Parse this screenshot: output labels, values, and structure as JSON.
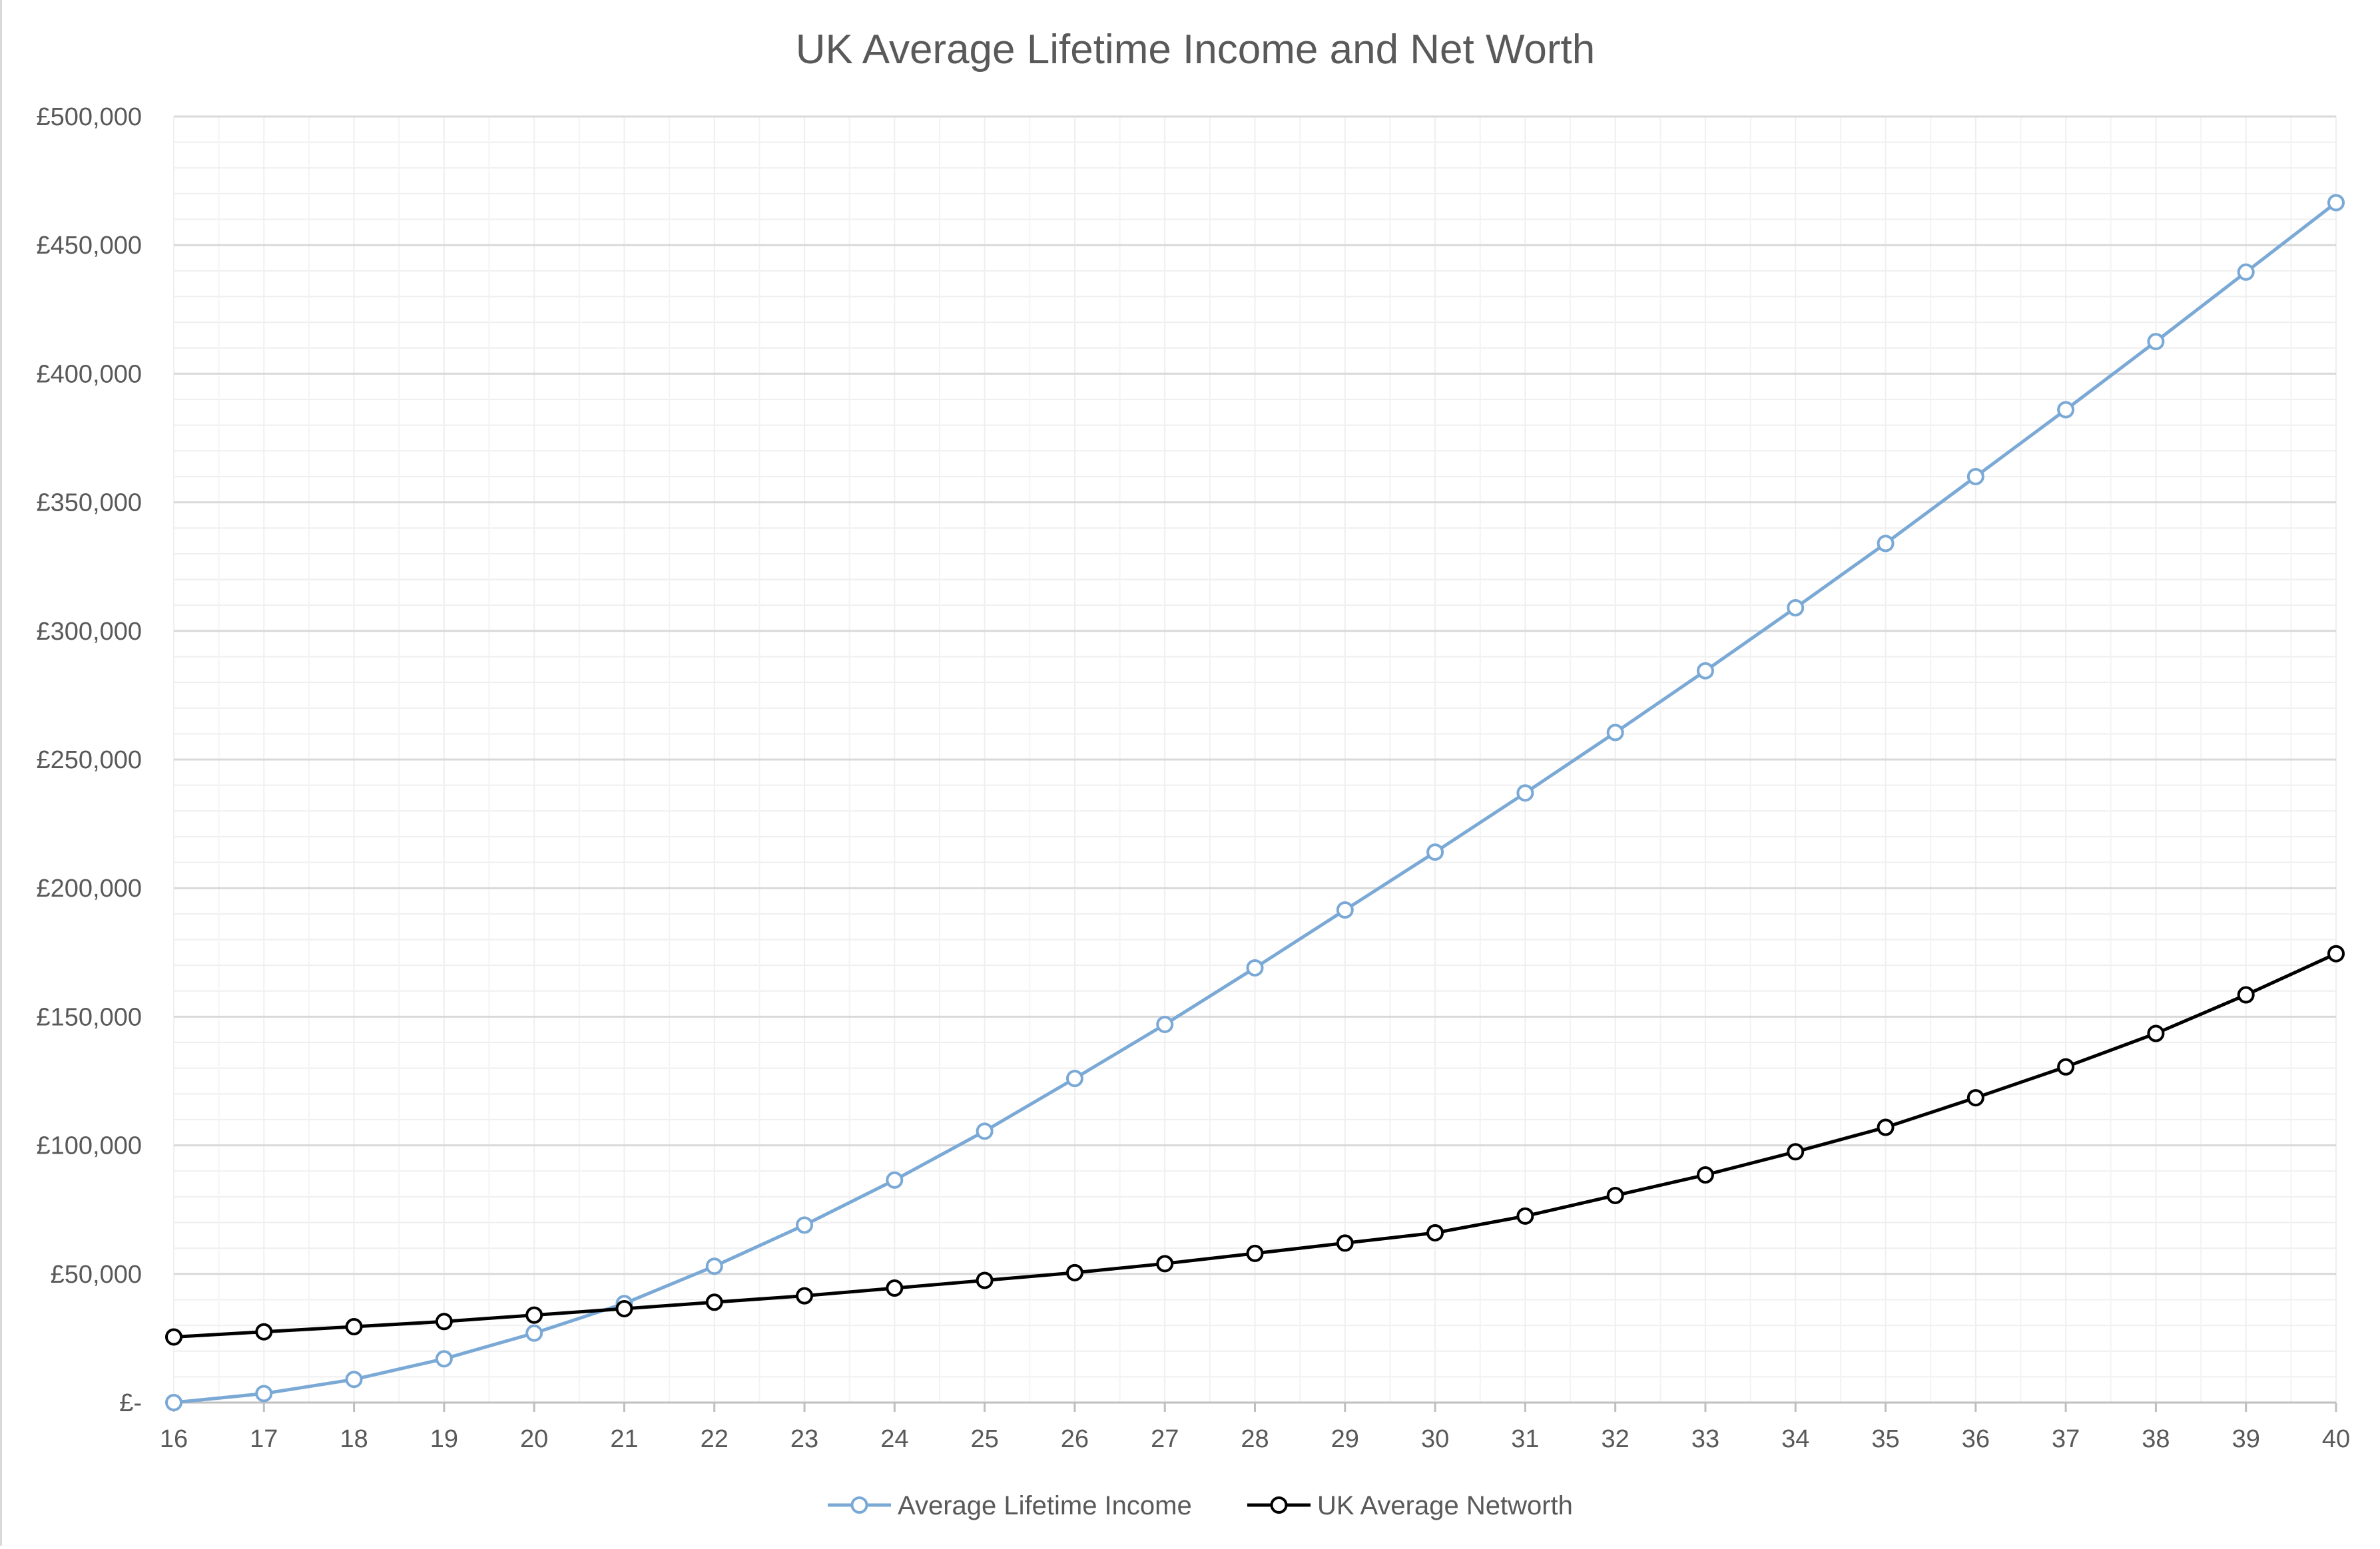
{
  "chart_data": {
    "type": "line",
    "title": "UK Average Lifetime Income and Net Worth",
    "xlabel": "",
    "ylabel": "",
    "x": [
      16,
      17,
      18,
      19,
      20,
      21,
      22,
      23,
      24,
      25,
      26,
      27,
      28,
      29,
      30,
      31,
      32,
      33,
      34,
      35,
      36,
      37,
      38,
      39,
      40
    ],
    "ylim": [
      0,
      500000
    ],
    "yticks": [
      0,
      50000,
      100000,
      150000,
      200000,
      250000,
      300000,
      350000,
      400000,
      450000,
      500000
    ],
    "ytick_labels": [
      "£-",
      "£50,000",
      "£100,000",
      "£150,000",
      "£200,000",
      "£250,000",
      "£300,000",
      "£350,000",
      "£400,000",
      "£450,000",
      "£500,000"
    ],
    "grid": true,
    "legend_position": "bottom",
    "series": [
      {
        "name": "Average Lifetime Income",
        "color": "#7aa9d6",
        "marker": "open-circle",
        "values": [
          0,
          3500,
          9000,
          17000,
          27000,
          38500,
          53000,
          69000,
          86500,
          105500,
          126000,
          147000,
          169000,
          191500,
          214000,
          237000,
          260500,
          284500,
          309000,
          334000,
          360000,
          386000,
          412500,
          439500,
          466500
        ]
      },
      {
        "name": "UK Average Networth",
        "color": "#000000",
        "marker": "open-circle",
        "values": [
          25500,
          27500,
          29500,
          31500,
          34000,
          36500,
          39000,
          41500,
          44500,
          47500,
          50500,
          54000,
          58000,
          62000,
          66000,
          72500,
          80500,
          88500,
          97500,
          107000,
          118500,
          130500,
          143500,
          158500,
          174500
        ]
      }
    ]
  }
}
